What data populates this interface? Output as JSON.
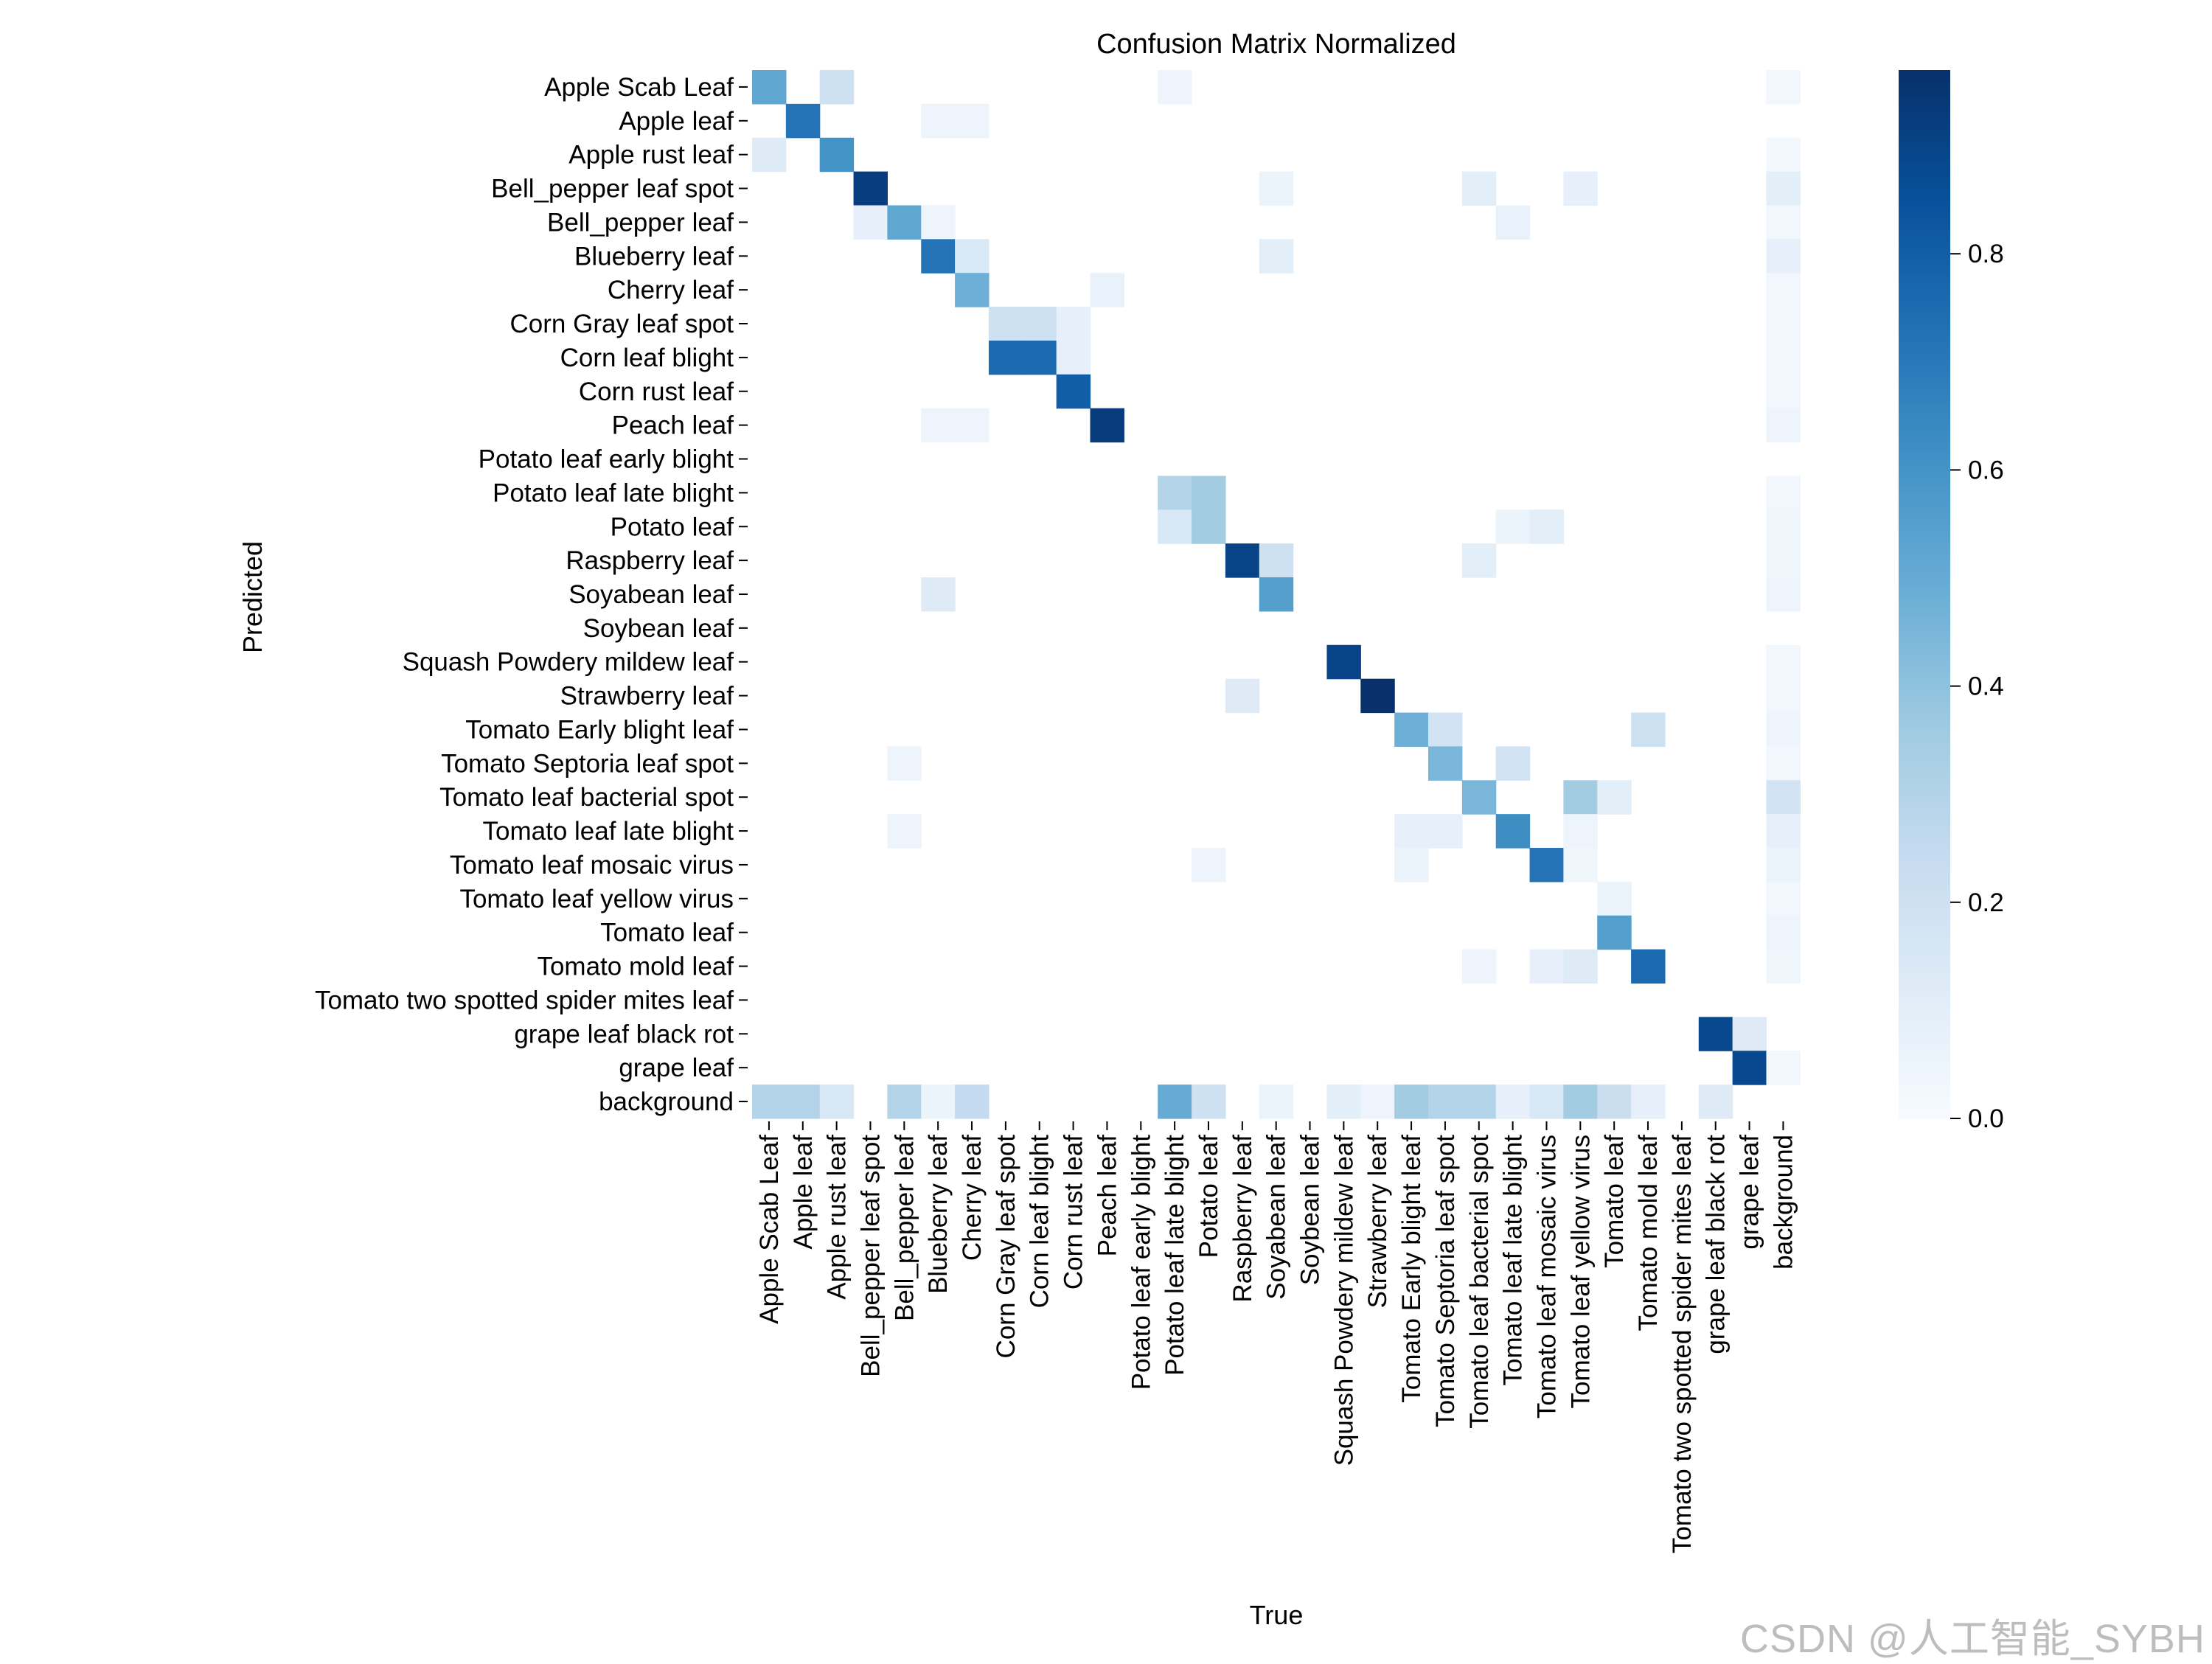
{
  "chart_data": {
    "type": "heatmap",
    "title": "Confusion Matrix Normalized",
    "xlabel": "True",
    "ylabel": "Predicted",
    "labels": [
      "Apple Scab Leaf",
      "Apple leaf",
      "Apple rust leaf",
      "Bell_pepper leaf spot",
      "Bell_pepper leaf",
      "Blueberry leaf",
      "Cherry leaf",
      "Corn Gray leaf spot",
      "Corn leaf blight",
      "Corn rust leaf",
      "Peach leaf",
      "Potato leaf early blight",
      "Potato leaf late blight",
      "Potato leaf",
      "Raspberry leaf",
      "Soyabean leaf",
      "Soybean leaf",
      "Squash Powdery mildew leaf",
      "Strawberry leaf",
      "Tomato Early blight leaf",
      "Tomato Septoria leaf spot",
      "Tomato leaf bacterial spot",
      "Tomato leaf late blight",
      "Tomato leaf mosaic virus",
      "Tomato leaf yellow virus",
      "Tomato leaf",
      "Tomato mold leaf",
      "Tomato two spotted spider mites leaf",
      "grape leaf black rot",
      "grape leaf",
      "background"
    ],
    "colorbar": {
      "min": 0.0,
      "max": 0.97,
      "ticks": [
        0.0,
        0.2,
        0.4,
        0.6,
        0.8
      ],
      "tick_labels": [
        "0.0",
        "0.2",
        "0.4",
        "0.6",
        "0.8"
      ],
      "colormap": "Blues"
    },
    "cells": [
      [
        0,
        0,
        0.52
      ],
      [
        0,
        2,
        0.2
      ],
      [
        0,
        12,
        0.05
      ],
      [
        0,
        30,
        0.03
      ],
      [
        1,
        1,
        0.72
      ],
      [
        1,
        5,
        0.05
      ],
      [
        1,
        6,
        0.05
      ],
      [
        2,
        0,
        0.12
      ],
      [
        2,
        2,
        0.6
      ],
      [
        2,
        30,
        0.02
      ],
      [
        3,
        3,
        0.92
      ],
      [
        3,
        15,
        0.06
      ],
      [
        3,
        21,
        0.1
      ],
      [
        3,
        24,
        0.08
      ],
      [
        3,
        30,
        0.1
      ],
      [
        4,
        3,
        0.08
      ],
      [
        4,
        4,
        0.52
      ],
      [
        4,
        5,
        0.05
      ],
      [
        4,
        22,
        0.07
      ],
      [
        4,
        30,
        0.03
      ],
      [
        5,
        5,
        0.72
      ],
      [
        5,
        6,
        0.14
      ],
      [
        5,
        15,
        0.1
      ],
      [
        5,
        30,
        0.08
      ],
      [
        6,
        6,
        0.48
      ],
      [
        6,
        10,
        0.07
      ],
      [
        6,
        30,
        0.03
      ],
      [
        7,
        7,
        0.2
      ],
      [
        7,
        8,
        0.2
      ],
      [
        7,
        9,
        0.08
      ],
      [
        7,
        30,
        0.03
      ],
      [
        8,
        7,
        0.75
      ],
      [
        8,
        8,
        0.75
      ],
      [
        8,
        9,
        0.08
      ],
      [
        8,
        30,
        0.03
      ],
      [
        9,
        9,
        0.8
      ],
      [
        9,
        30,
        0.03
      ],
      [
        10,
        5,
        0.05
      ],
      [
        10,
        6,
        0.05
      ],
      [
        10,
        10,
        0.93
      ],
      [
        10,
        30,
        0.05
      ],
      [
        12,
        12,
        0.3
      ],
      [
        12,
        13,
        0.35
      ],
      [
        12,
        30,
        0.03
      ],
      [
        13,
        12,
        0.15
      ],
      [
        13,
        13,
        0.35
      ],
      [
        13,
        22,
        0.06
      ],
      [
        13,
        23,
        0.1
      ],
      [
        13,
        30,
        0.04
      ],
      [
        14,
        14,
        0.9
      ],
      [
        14,
        15,
        0.2
      ],
      [
        14,
        21,
        0.1
      ],
      [
        14,
        30,
        0.04
      ],
      [
        15,
        5,
        0.12
      ],
      [
        15,
        15,
        0.55
      ],
      [
        15,
        30,
        0.05
      ],
      [
        17,
        17,
        0.9
      ],
      [
        17,
        30,
        0.03
      ],
      [
        18,
        14,
        0.12
      ],
      [
        18,
        18,
        0.97
      ],
      [
        18,
        30,
        0.03
      ],
      [
        19,
        19,
        0.48
      ],
      [
        19,
        20,
        0.18
      ],
      [
        19,
        26,
        0.2
      ],
      [
        19,
        30,
        0.05
      ],
      [
        20,
        4,
        0.05
      ],
      [
        20,
        20,
        0.45
      ],
      [
        20,
        22,
        0.18
      ],
      [
        20,
        30,
        0.03
      ],
      [
        21,
        21,
        0.45
      ],
      [
        21,
        24,
        0.35
      ],
      [
        21,
        25,
        0.1
      ],
      [
        21,
        30,
        0.18
      ],
      [
        22,
        4,
        0.05
      ],
      [
        22,
        19,
        0.08
      ],
      [
        22,
        20,
        0.08
      ],
      [
        22,
        22,
        0.62
      ],
      [
        22,
        24,
        0.05
      ],
      [
        22,
        30,
        0.08
      ],
      [
        23,
        13,
        0.05
      ],
      [
        23,
        19,
        0.06
      ],
      [
        23,
        23,
        0.72
      ],
      [
        23,
        24,
        0.04
      ],
      [
        23,
        30,
        0.06
      ],
      [
        24,
        25,
        0.06
      ],
      [
        24,
        30,
        0.03
      ],
      [
        25,
        25,
        0.55
      ],
      [
        25,
        30,
        0.05
      ],
      [
        26,
        21,
        0.05
      ],
      [
        26,
        23,
        0.08
      ],
      [
        26,
        24,
        0.12
      ],
      [
        26,
        26,
        0.75
      ],
      [
        26,
        30,
        0.04
      ],
      [
        28,
        28,
        0.88
      ],
      [
        28,
        29,
        0.12
      ],
      [
        29,
        29,
        0.88
      ],
      [
        29,
        30,
        0.03
      ],
      [
        30,
        0,
        0.3
      ],
      [
        30,
        1,
        0.3
      ],
      [
        30,
        2,
        0.15
      ],
      [
        30,
        4,
        0.3
      ],
      [
        30,
        5,
        0.06
      ],
      [
        30,
        6,
        0.25
      ],
      [
        30,
        12,
        0.5
      ],
      [
        30,
        13,
        0.2
      ],
      [
        30,
        15,
        0.06
      ],
      [
        30,
        17,
        0.1
      ],
      [
        30,
        18,
        0.05
      ],
      [
        30,
        19,
        0.35
      ],
      [
        30,
        20,
        0.3
      ],
      [
        30,
        21,
        0.3
      ],
      [
        30,
        22,
        0.08
      ],
      [
        30,
        23,
        0.15
      ],
      [
        30,
        24,
        0.35
      ],
      [
        30,
        25,
        0.22
      ],
      [
        30,
        26,
        0.08
      ],
      [
        30,
        28,
        0.12
      ]
    ]
  },
  "watermark": "CSDN @人工智能_SYBH"
}
